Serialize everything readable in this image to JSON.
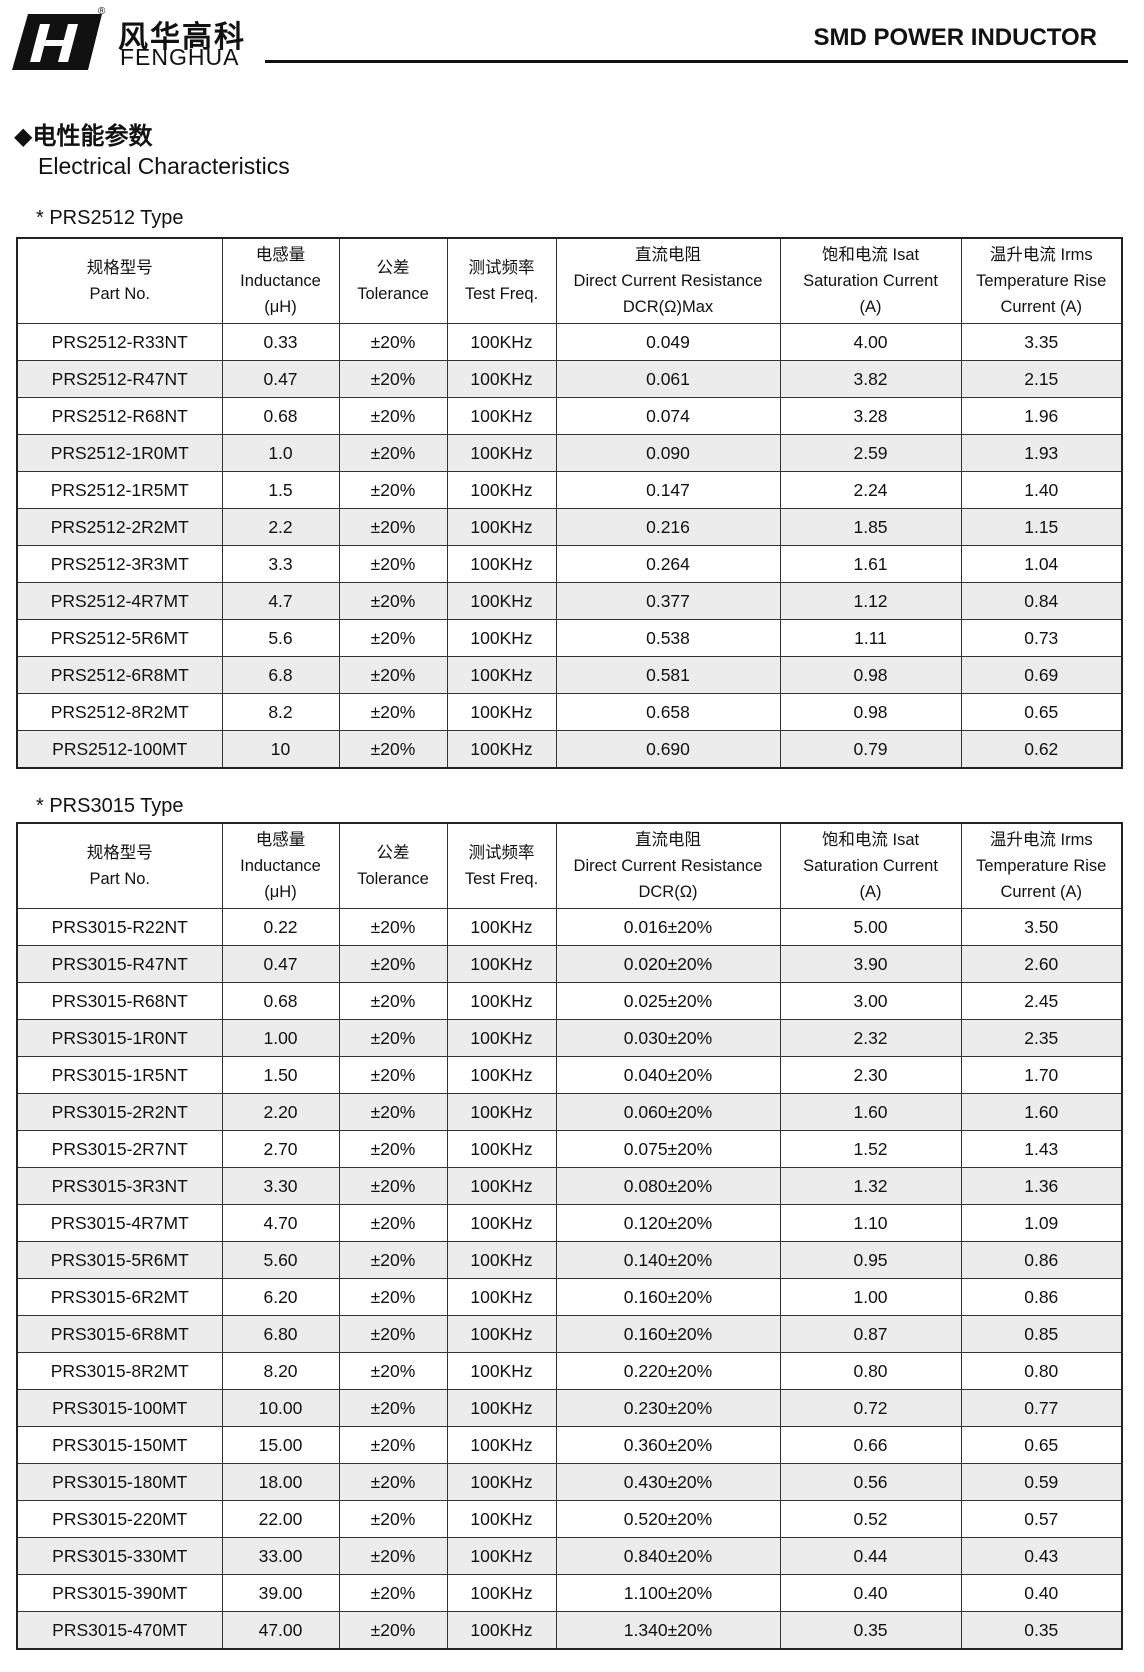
{
  "header": {
    "logo_cn": "风华高科",
    "logo_en": "FENGHUA",
    "registered": "®",
    "title": "SMD POWER INDUCTOR"
  },
  "section": {
    "title_cn": "◆电性能参数",
    "title_en": "Electrical Characteristics"
  },
  "tables": [
    {
      "label": "* PRS2512 Type",
      "columns": [
        [
          "规格型号",
          "Part No."
        ],
        [
          "电感量",
          "Inductance",
          "(μH)"
        ],
        [
          "公差",
          "Tolerance"
        ],
        [
          "测试频率",
          "Test Freq."
        ],
        [
          "直流电阻",
          "Direct Current Resistance",
          "DCR(Ω)Max"
        ],
        [
          "饱和电流  Isat",
          "Saturation Current",
          "(A)"
        ],
        [
          "温升电流  Irms",
          "Temperature Rise",
          "Current (A)"
        ]
      ],
      "rows": [
        [
          "PRS2512-R33NT",
          "0.33",
          "±20%",
          "100KHz",
          "0.049",
          "4.00",
          "3.35"
        ],
        [
          "PRS2512-R47NT",
          "0.47",
          "±20%",
          "100KHz",
          "0.061",
          "3.82",
          "2.15"
        ],
        [
          "PRS2512-R68NT",
          "0.68",
          "±20%",
          "100KHz",
          "0.074",
          "3.28",
          "1.96"
        ],
        [
          "PRS2512-1R0MT",
          "1.0",
          "±20%",
          "100KHz",
          "0.090",
          "2.59",
          "1.93"
        ],
        [
          "PRS2512-1R5MT",
          "1.5",
          "±20%",
          "100KHz",
          "0.147",
          "2.24",
          "1.40"
        ],
        [
          "PRS2512-2R2MT",
          "2.2",
          "±20%",
          "100KHz",
          "0.216",
          "1.85",
          "1.15"
        ],
        [
          "PRS2512-3R3MT",
          "3.3",
          "±20%",
          "100KHz",
          "0.264",
          "1.61",
          "1.04"
        ],
        [
          "PRS2512-4R7MT",
          "4.7",
          "±20%",
          "100KHz",
          "0.377",
          "1.12",
          "0.84"
        ],
        [
          "PRS2512-5R6MT",
          "5.6",
          "±20%",
          "100KHz",
          "0.538",
          "1.11",
          "0.73"
        ],
        [
          "PRS2512-6R8MT",
          "6.8",
          "±20%",
          "100KHz",
          "0.581",
          "0.98",
          "0.69"
        ],
        [
          "PRS2512-8R2MT",
          "8.2",
          "±20%",
          "100KHz",
          "0.658",
          "0.98",
          "0.65"
        ],
        [
          "PRS2512-100MT",
          "10",
          "±20%",
          "100KHz",
          "0.690",
          "0.79",
          "0.62"
        ]
      ]
    },
    {
      "label": "* PRS3015 Type",
      "columns": [
        [
          "规格型号",
          "Part No."
        ],
        [
          "电感量",
          "Inductance",
          "(μH)"
        ],
        [
          "公差",
          "Tolerance"
        ],
        [
          "测试频率",
          "Test Freq."
        ],
        [
          "直流电阻",
          "Direct Current Resistance",
          "DCR(Ω)"
        ],
        [
          "饱和电流  Isat",
          "Saturation Current",
          "(A)"
        ],
        [
          "温升电流  Irms",
          "Temperature Rise",
          "Current (A)"
        ]
      ],
      "rows": [
        [
          "PRS3015-R22NT",
          "0.22",
          "±20%",
          "100KHz",
          "0.016±20%",
          "5.00",
          "3.50"
        ],
        [
          "PRS3015-R47NT",
          "0.47",
          "±20%",
          "100KHz",
          "0.020±20%",
          "3.90",
          "2.60"
        ],
        [
          "PRS3015-R68NT",
          "0.68",
          "±20%",
          "100KHz",
          "0.025±20%",
          "3.00",
          "2.45"
        ],
        [
          "PRS3015-1R0NT",
          "1.00",
          "±20%",
          "100KHz",
          "0.030±20%",
          "2.32",
          "2.35"
        ],
        [
          "PRS3015-1R5NT",
          "1.50",
          "±20%",
          "100KHz",
          "0.040±20%",
          "2.30",
          "1.70"
        ],
        [
          "PRS3015-2R2NT",
          "2.20",
          "±20%",
          "100KHz",
          "0.060±20%",
          "1.60",
          "1.60"
        ],
        [
          "PRS3015-2R7NT",
          "2.70",
          "±20%",
          "100KHz",
          "0.075±20%",
          "1.52",
          "1.43"
        ],
        [
          "PRS3015-3R3NT",
          "3.30",
          "±20%",
          "100KHz",
          "0.080±20%",
          "1.32",
          "1.36"
        ],
        [
          "PRS3015-4R7MT",
          "4.70",
          "±20%",
          "100KHz",
          "0.120±20%",
          "1.10",
          "1.09"
        ],
        [
          "PRS3015-5R6MT",
          "5.60",
          "±20%",
          "100KHz",
          "0.140±20%",
          "0.95",
          "0.86"
        ],
        [
          "PRS3015-6R2MT",
          "6.20",
          "±20%",
          "100KHz",
          "0.160±20%",
          "1.00",
          "0.86"
        ],
        [
          "PRS3015-6R8MT",
          "6.80",
          "±20%",
          "100KHz",
          "0.160±20%",
          "0.87",
          "0.85"
        ],
        [
          "PRS3015-8R2MT",
          "8.20",
          "±20%",
          "100KHz",
          "0.220±20%",
          "0.80",
          "0.80"
        ],
        [
          "PRS3015-100MT",
          "10.00",
          "±20%",
          "100KHz",
          "0.230±20%",
          "0.72",
          "0.77"
        ],
        [
          "PRS3015-150MT",
          "15.00",
          "±20%",
          "100KHz",
          "0.360±20%",
          "0.66",
          "0.65"
        ],
        [
          "PRS3015-180MT",
          "18.00",
          "±20%",
          "100KHz",
          "0.430±20%",
          "0.56",
          "0.59"
        ],
        [
          "PRS3015-220MT",
          "22.00",
          "±20%",
          "100KHz",
          "0.520±20%",
          "0.52",
          "0.57"
        ],
        [
          "PRS3015-330MT",
          "33.00",
          "±20%",
          "100KHz",
          "0.840±20%",
          "0.44",
          "0.43"
        ],
        [
          "PRS3015-390MT",
          "39.00",
          "±20%",
          "100KHz",
          "1.100±20%",
          "0.40",
          "0.40"
        ],
        [
          "PRS3015-470MT",
          "47.00",
          "±20%",
          "100KHz",
          "1.340±20%",
          "0.35",
          "0.35"
        ]
      ]
    }
  ]
}
